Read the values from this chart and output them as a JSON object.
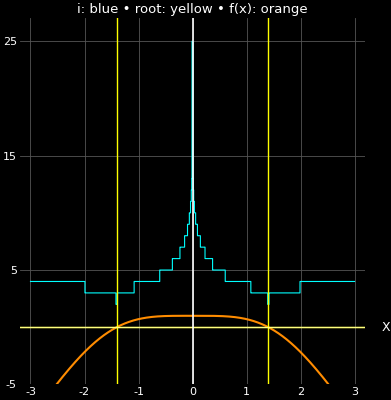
{
  "title": "i: blue • root: yellow • f(x): orange",
  "xlabel": "X",
  "xlim": [
    -3.2,
    3.2
  ],
  "ylim": [
    -5,
    27
  ],
  "background_color": "#000000",
  "grid_color": "#555555",
  "tick_color": "#ffffff",
  "title_color": "#ffffff",
  "cyan_color": "#00ffff",
  "yellow_color": "#ffff00",
  "orange_color": "#ff8c00",
  "white_color": "#ffffff",
  "xticks": [
    -3,
    -2,
    -1,
    0,
    1,
    2,
    3
  ],
  "yticks": [
    -5,
    5,
    15,
    25
  ],
  "max_iter": 25,
  "n_points": 3000
}
